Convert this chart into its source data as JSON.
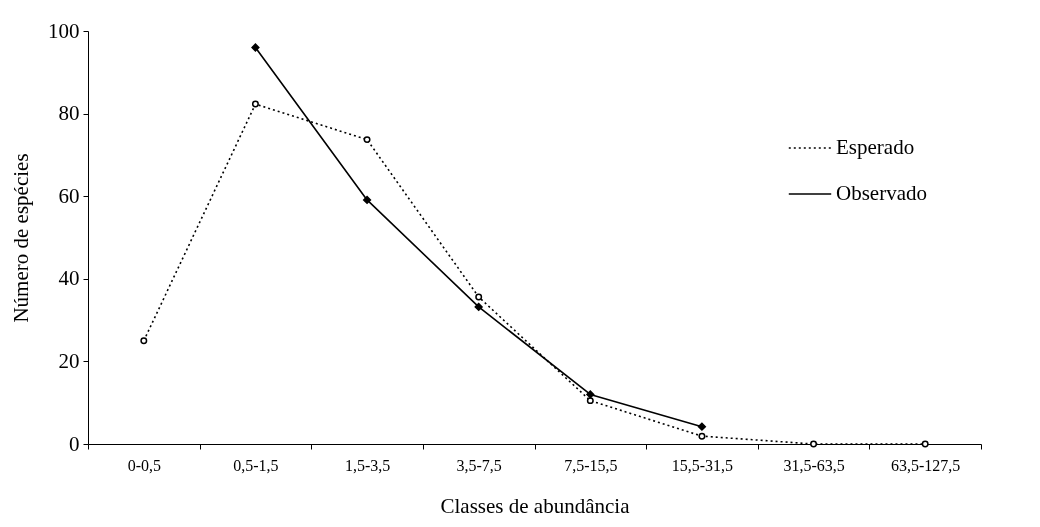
{
  "chart_data": {
    "type": "line",
    "xlabel": "Classes de abundância",
    "ylabel": "Número de espécies",
    "categories": [
      "0-0,5",
      "0,5-1,5",
      "1,5-3,5",
      "3,5-7,5",
      "7,5-15,5",
      "15,5-31,5",
      "31,5-63,5",
      "63,5-127,5"
    ],
    "series": [
      {
        "name": "Esperado",
        "color": "#000000",
        "marker": "circle",
        "line_style": "dotted",
        "values": [
          25,
          82.3,
          73.7,
          35.6,
          10.5,
          1.9,
          0,
          0
        ]
      },
      {
        "name": "Observado",
        "color": "#000000",
        "marker": "diamond",
        "line_style": "solid",
        "values": [
          null,
          96,
          59.1,
          33.2,
          12,
          4.2,
          null,
          null
        ]
      }
    ],
    "ylim": [
      0,
      100
    ],
    "yticks": [
      0,
      20,
      40,
      60,
      80,
      100
    ],
    "grid": false,
    "legend": "top right"
  }
}
